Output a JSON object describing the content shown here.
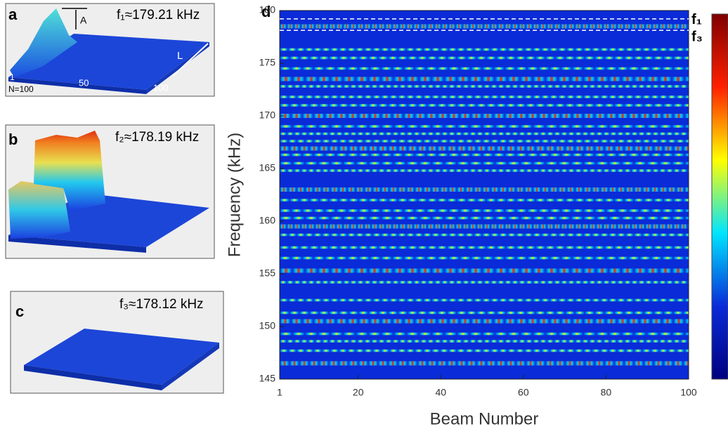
{
  "panels": [
    {
      "label": "a",
      "caption": "f₁≈179.21 kHz"
    },
    {
      "label": "b",
      "caption": "f₂≈178.19 kHz"
    },
    {
      "label": "c",
      "caption": "f₃≈178.12 kHz"
    }
  ],
  "panel_a_annotations": {
    "amplitude": "A",
    "length": "L",
    "axis_labels": [
      1,
      50,
      100
    ],
    "n_label": "N=100"
  },
  "chart_data": {
    "type": "heatmap",
    "panel_label": "d",
    "xlabel": "Beam Number",
    "ylabel": "Frequency (kHz)",
    "xlim": [
      1,
      100
    ],
    "ylim": [
      145,
      180
    ],
    "xticks": [
      1,
      20,
      40,
      60,
      80,
      100
    ],
    "yticks": [
      145,
      150,
      155,
      160,
      165,
      170,
      175,
      180
    ],
    "mode_lines": [
      {
        "label": "f₁",
        "value": 179.21
      },
      {
        "label": "f₃",
        "value": 178.12
      }
    ],
    "bands": [
      178.5,
      176.3,
      175.5,
      174.5,
      173.5,
      172.8,
      171.8,
      171.0,
      170.0,
      169.0,
      168.3,
      167.6,
      166.9,
      166.3,
      165.5,
      164.8,
      163.0,
      162.0,
      161.0,
      160.3,
      159.5,
      158.7,
      157.5,
      156.5,
      155.3,
      154.2,
      152.5,
      151.3,
      150.5,
      149.3,
      148.6,
      147.7,
      146.5
    ],
    "colormap": [
      "#00007f",
      "#0a2bd8",
      "#00e5ff",
      "#ffff00",
      "#ff2000",
      "#7f0000"
    ]
  }
}
